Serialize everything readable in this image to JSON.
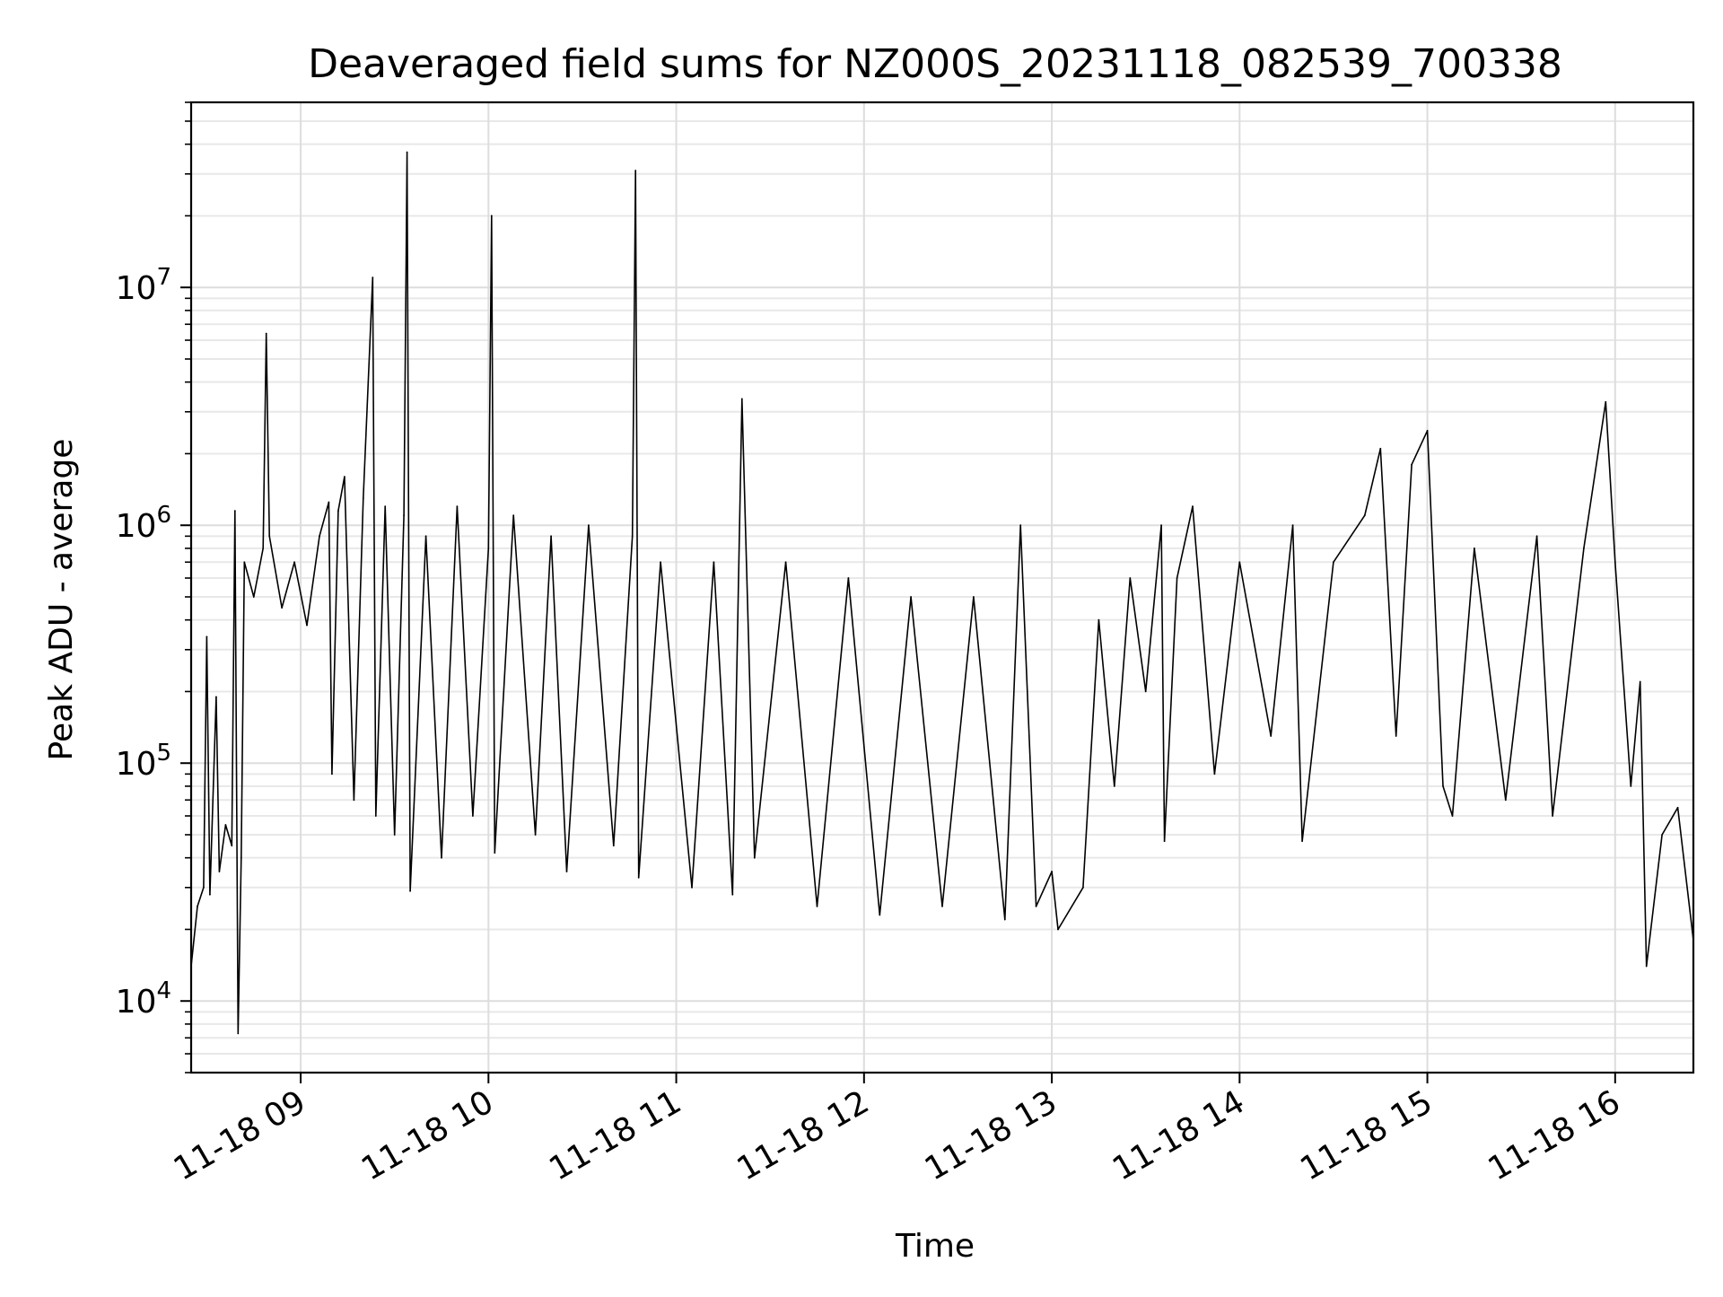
{
  "chart_data": {
    "type": "line",
    "title": "Deaveraged field sums for NZ000S_20231118_082539_700338",
    "xlabel": "Time",
    "ylabel": "Peak ADU - average",
    "y_scale": "log",
    "ylim": [
      5000,
      60000000
    ],
    "xlim": [
      "2023-11-18 08:25",
      "2023-11-18 16:25"
    ],
    "grid": "on (major and minor)",
    "line_color": "#000000",
    "x_ticks": [
      {
        "t": "2023-11-18 09:00",
        "label": "11-18 09"
      },
      {
        "t": "2023-11-18 10:00",
        "label": "11-18 10"
      },
      {
        "t": "2023-11-18 11:00",
        "label": "11-18 11"
      },
      {
        "t": "2023-11-18 12:00",
        "label": "11-18 12"
      },
      {
        "t": "2023-11-18 13:00",
        "label": "11-18 13"
      },
      {
        "t": "2023-11-18 14:00",
        "label": "11-18 14"
      },
      {
        "t": "2023-11-18 15:00",
        "label": "11-18 15"
      },
      {
        "t": "2023-11-18 16:00",
        "label": "11-18 16"
      }
    ],
    "y_ticks": [
      {
        "value": 10000,
        "base": "10",
        "exp": "4"
      },
      {
        "value": 100000,
        "base": "10",
        "exp": "5"
      },
      {
        "value": 1000000,
        "base": "10",
        "exp": "6"
      },
      {
        "value": 10000000,
        "base": "10",
        "exp": "7"
      }
    ],
    "series": [
      {
        "points": [
          [
            "2023-11-18 08:25",
            14000
          ],
          [
            "2023-11-18 08:27",
            25000
          ],
          [
            "2023-11-18 08:29",
            30000
          ],
          [
            "2023-11-18 08:30",
            340000
          ],
          [
            "2023-11-18 08:31",
            28000
          ],
          [
            "2023-11-18 08:33",
            190000
          ],
          [
            "2023-11-18 08:34",
            35000
          ],
          [
            "2023-11-18 08:36",
            55000
          ],
          [
            "2023-11-18 08:38",
            45000
          ],
          [
            "2023-11-18 08:39",
            1150000
          ],
          [
            "2023-11-18 08:40",
            7300
          ],
          [
            "2023-11-18 08:41",
            40000
          ],
          [
            "2023-11-18 08:42",
            700000
          ],
          [
            "2023-11-18 08:45",
            500000
          ],
          [
            "2023-11-18 08:48",
            800000
          ],
          [
            "2023-11-18 08:49",
            6400000
          ],
          [
            "2023-11-18 08:50",
            900000
          ],
          [
            "2023-11-18 08:54",
            450000
          ],
          [
            "2023-11-18 08:58",
            700000
          ],
          [
            "2023-11-18 09:02",
            380000
          ],
          [
            "2023-11-18 09:06",
            900000
          ],
          [
            "2023-11-18 09:09",
            1250000
          ],
          [
            "2023-11-18 09:10",
            90000
          ],
          [
            "2023-11-18 09:12",
            1150000
          ],
          [
            "2023-11-18 09:14",
            1600000
          ],
          [
            "2023-11-18 09:17",
            70000
          ],
          [
            "2023-11-18 09:20",
            1300000
          ],
          [
            "2023-11-18 09:23",
            11000000
          ],
          [
            "2023-11-18 09:24",
            60000
          ],
          [
            "2023-11-18 09:27",
            1200000
          ],
          [
            "2023-11-18 09:30",
            50000
          ],
          [
            "2023-11-18 09:33",
            1100000
          ],
          [
            "2023-11-18 09:34",
            37000000
          ],
          [
            "2023-11-18 09:35",
            29000
          ],
          [
            "2023-11-18 09:40",
            900000
          ],
          [
            "2023-11-18 09:45",
            40000
          ],
          [
            "2023-11-18 09:50",
            1200000
          ],
          [
            "2023-11-18 09:55",
            60000
          ],
          [
            "2023-11-18 10:00",
            800000
          ],
          [
            "2023-11-18 10:01",
            20000000
          ],
          [
            "2023-11-18 10:02",
            42000
          ],
          [
            "2023-11-18 10:08",
            1100000
          ],
          [
            "2023-11-18 10:15",
            50000
          ],
          [
            "2023-11-18 10:20",
            900000
          ],
          [
            "2023-11-18 10:25",
            35000
          ],
          [
            "2023-11-18 10:32",
            1000000
          ],
          [
            "2023-11-18 10:40",
            45000
          ],
          [
            "2023-11-18 10:46",
            900000
          ],
          [
            "2023-11-18 10:47",
            31000000
          ],
          [
            "2023-11-18 10:48",
            33000
          ],
          [
            "2023-11-18 10:55",
            700000
          ],
          [
            "2023-11-18 11:05",
            30000
          ],
          [
            "2023-11-18 11:12",
            700000
          ],
          [
            "2023-11-18 11:18",
            28000
          ],
          [
            "2023-11-18 11:21",
            3400000
          ],
          [
            "2023-11-18 11:25",
            40000
          ],
          [
            "2023-11-18 11:35",
            700000
          ],
          [
            "2023-11-18 11:45",
            25000
          ],
          [
            "2023-11-18 11:55",
            600000
          ],
          [
            "2023-11-18 12:05",
            23000
          ],
          [
            "2023-11-18 12:15",
            500000
          ],
          [
            "2023-11-18 12:25",
            25000
          ],
          [
            "2023-11-18 12:35",
            500000
          ],
          [
            "2023-11-18 12:45",
            22000
          ],
          [
            "2023-11-18 12:50",
            1000000
          ],
          [
            "2023-11-18 12:55",
            25000
          ],
          [
            "2023-11-18 13:00",
            35000
          ],
          [
            "2023-11-18 13:02",
            20000
          ],
          [
            "2023-11-18 13:10",
            30000
          ],
          [
            "2023-11-18 13:15",
            400000
          ],
          [
            "2023-11-18 13:20",
            80000
          ],
          [
            "2023-11-18 13:25",
            600000
          ],
          [
            "2023-11-18 13:30",
            200000
          ],
          [
            "2023-11-18 13:35",
            1000000
          ],
          [
            "2023-11-18 13:36",
            47000
          ],
          [
            "2023-11-18 13:40",
            600000
          ],
          [
            "2023-11-18 13:45",
            1200000
          ],
          [
            "2023-11-18 13:52",
            90000
          ],
          [
            "2023-11-18 14:00",
            700000
          ],
          [
            "2023-11-18 14:10",
            130000
          ],
          [
            "2023-11-18 14:17",
            1000000
          ],
          [
            "2023-11-18 14:20",
            47000
          ],
          [
            "2023-11-18 14:30",
            700000
          ],
          [
            "2023-11-18 14:40",
            1100000
          ],
          [
            "2023-11-18 14:45",
            2100000
          ],
          [
            "2023-11-18 14:50",
            130000
          ],
          [
            "2023-11-18 14:55",
            1800000
          ],
          [
            "2023-11-18 15:00",
            2500000
          ],
          [
            "2023-11-18 15:05",
            80000
          ],
          [
            "2023-11-18 15:08",
            60000
          ],
          [
            "2023-11-18 15:15",
            800000
          ],
          [
            "2023-11-18 15:25",
            70000
          ],
          [
            "2023-11-18 15:35",
            900000
          ],
          [
            "2023-11-18 15:40",
            60000
          ],
          [
            "2023-11-18 15:50",
            800000
          ],
          [
            "2023-11-18 15:57",
            3300000
          ],
          [
            "2023-11-18 16:00",
            700000
          ],
          [
            "2023-11-18 16:05",
            80000
          ],
          [
            "2023-11-18 16:08",
            220000
          ],
          [
            "2023-11-18 16:10",
            14000
          ],
          [
            "2023-11-18 16:15",
            50000
          ],
          [
            "2023-11-18 16:20",
            65000
          ],
          [
            "2023-11-18 16:25",
            18000
          ]
        ]
      }
    ]
  }
}
